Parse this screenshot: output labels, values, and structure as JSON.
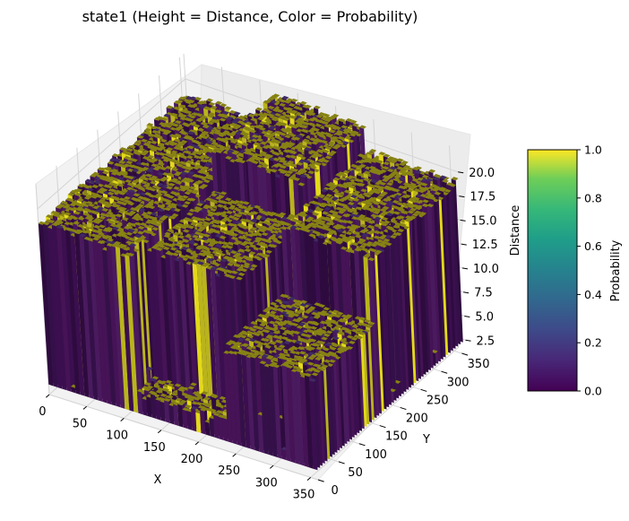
{
  "chart_data": {
    "type": "surface3d",
    "title": "state1 (Height = Distance, Color = Probability)",
    "xlabel": "X",
    "ylabel": "Y",
    "zlabel": "Distance",
    "xlim": [
      0,
      360
    ],
    "ylim": [
      0,
      360
    ],
    "zlim": [
      1.5,
      22.5
    ],
    "x_ticks": [
      "0",
      "50",
      "100",
      "150",
      "200",
      "250",
      "300",
      "350"
    ],
    "y_ticks": [
      "0",
      "50",
      "100",
      "150",
      "200",
      "250",
      "300",
      "350"
    ],
    "z_ticks": [
      "2.5",
      "5.0",
      "7.5",
      "10.0",
      "12.5",
      "15.0",
      "17.5",
      "20.0"
    ],
    "colorbar": {
      "label": "Probability",
      "colormap": "viridis",
      "range": [
        0.0,
        1.0
      ],
      "ticks": [
        "0.0",
        "0.2",
        "0.4",
        "0.6",
        "0.8",
        "1.0"
      ]
    },
    "surface_regions": [
      {
        "x_range": [
          0,
          120
        ],
        "y_range": [
          0,
          360
        ],
        "height": 18.5
      },
      {
        "x_range": [
          120,
          240
        ],
        "y_range": [
          40,
          200
        ],
        "height": 17.5
      },
      {
        "x_range": [
          120,
          240
        ],
        "y_range": [
          200,
          360
        ],
        "height": 21.5
      },
      {
        "x_range": [
          240,
          360
        ],
        "y_range": [
          0,
          150
        ],
        "height": 12.0
      },
      {
        "x_range": [
          240,
          360
        ],
        "y_range": [
          150,
          360
        ],
        "height": 19.0
      }
    ],
    "grid": true,
    "colors": {
      "pane": "#f2f2f2",
      "grid": "#d4d4d4",
      "low_probability": "#440154",
      "high_probability": "#fde725",
      "top_surface": "#878214"
    }
  }
}
